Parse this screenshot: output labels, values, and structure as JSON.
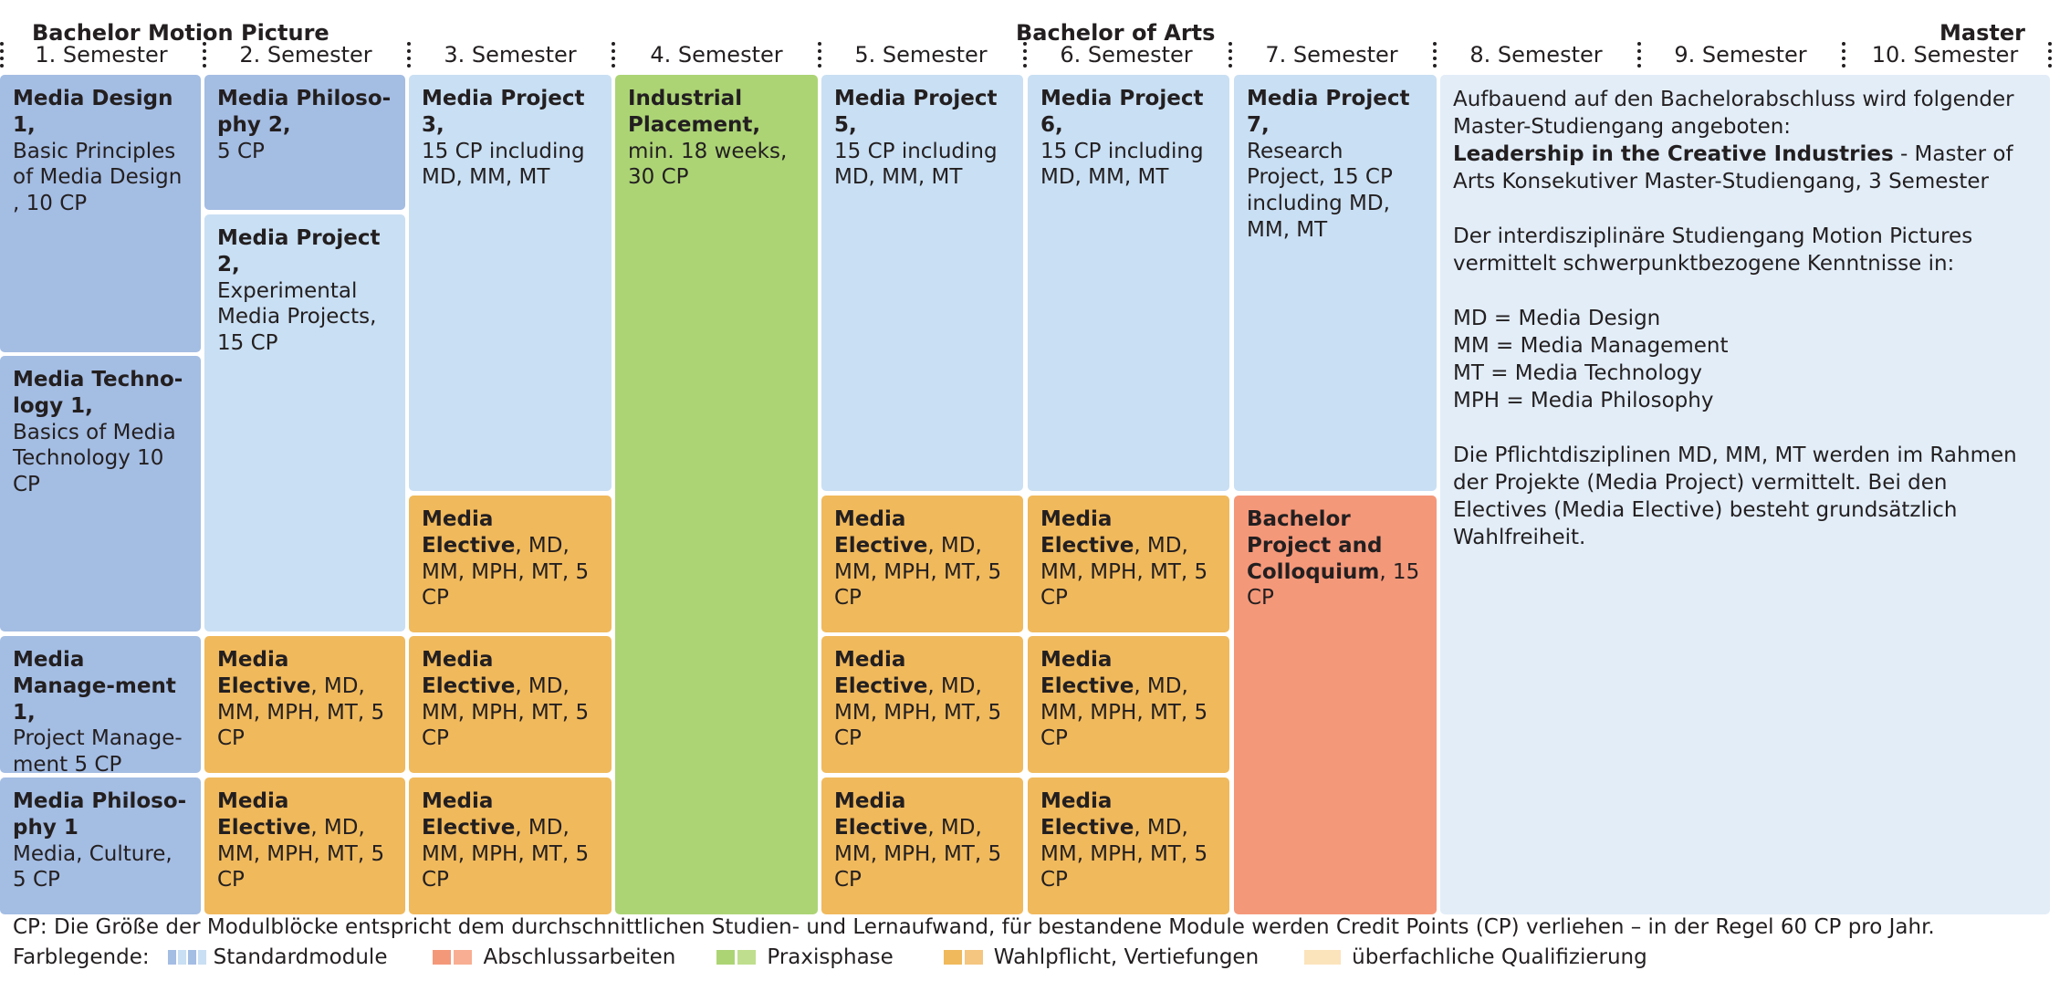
{
  "header": {
    "bachelor_mp": "Bachelor Motion Picture",
    "bachelor_arts": "Bachelor of Arts",
    "master": "Master"
  },
  "semesters": [
    "1. Semester",
    "2. Semester",
    "3. Semester",
    "4. Semester",
    "5. Semester",
    "6. Semester",
    "7. Semester",
    "8. Semester",
    "9. Semester",
    "10. Semester"
  ],
  "modules": {
    "s1_md_title": "Media Design 1,",
    "s1_md_body": "Basic Principles of Media Design , 10 CP",
    "s1_mt_title": "Media Techno-logy 1,",
    "s1_mt_body": "Basics of Media Technology 10 CP",
    "s1_mm_title": "Media Manage-ment 1,",
    "s1_mm_body": "Project Manage-ment 5 CP",
    "s1_mph_title": "Media Philoso-phy 1",
    "s1_mph_body": "Media, Culture, 5 CP",
    "s2_mph_title": "Media Philoso-phy 2,",
    "s2_mph_body": "5 CP",
    "s2_mp_title": "Media Project 2,",
    "s2_mp_body": "Experimental Media Projects, 15 CP",
    "s3_mp_title": "Media Project 3,",
    "s3_mp_body": "15 CP including MD, MM, MT",
    "s4_ip_title": "Industrial Placement,",
    "s4_ip_body": "min. 18 weeks, 30 CP",
    "s5_mp_title": "Media Project 5,",
    "s5_mp_body": "15 CP including MD, MM, MT",
    "s6_mp_title": "Media Project 6,",
    "s6_mp_body": "15 CP including MD, MM, MT",
    "s7_mp_title": "Media Project 7,",
    "s7_mp_body": "Research Project, 15 CP including MD, MM, MT",
    "s7_bp_title": "Bachelor Project and Colloquium",
    "s7_bp_body": ", 15 CP",
    "elective_title": "Media Elective",
    "elective_body": ", MD, MM, MPH, MT, 5 CP"
  },
  "master_text": {
    "p1": "Aufbauend auf den Bachelorabschluss wird folgender Master-Studiengang angeboten:",
    "p1_bold": "Leadership in the Creative Industries",
    "p1_rest": " - Master of Arts Konsekutiver Master-Studiengang, 3 Semester",
    "p2": "Der interdisziplinäre Studiengang Motion Pictures vermittelt schwerpunktbezogene Kenntnisse in:",
    "md": "MD = Media Design",
    "mm": "MM = Media Management",
    "mt": "MT = Media Technology",
    "mph": "MPH = Media Philosophy",
    "p3": "Die Pflichtdisziplinen MD, MM, MT werden im Rahmen der Projekte (Media Project) vermittelt. Bei den Electives (Media Elective) besteht grundsätzlich Wahlfreiheit."
  },
  "footnote": "CP: Die Größe der Modulblöcke entspricht dem durchschnittlichen Studien- und Lernaufwand, für bestandene Module werden Credit Points (CP) verliehen – in der Regel 60 CP pro Jahr.",
  "legend": {
    "label": "Farblegende:",
    "items": [
      "Standardmodule",
      "Abschlussarbeiten",
      "Praxisphase",
      "Wahlpflicht, Vertiefungen",
      "überfachliche Qualifizierung"
    ]
  },
  "colors": {
    "standard": "#a4bde3",
    "standard_light": "#c9dff3",
    "final": "#f4987a",
    "practice": "#acd475",
    "elective": "#f0b95c",
    "general": "#fbe3bc",
    "master_bg": "#e2edf8"
  }
}
